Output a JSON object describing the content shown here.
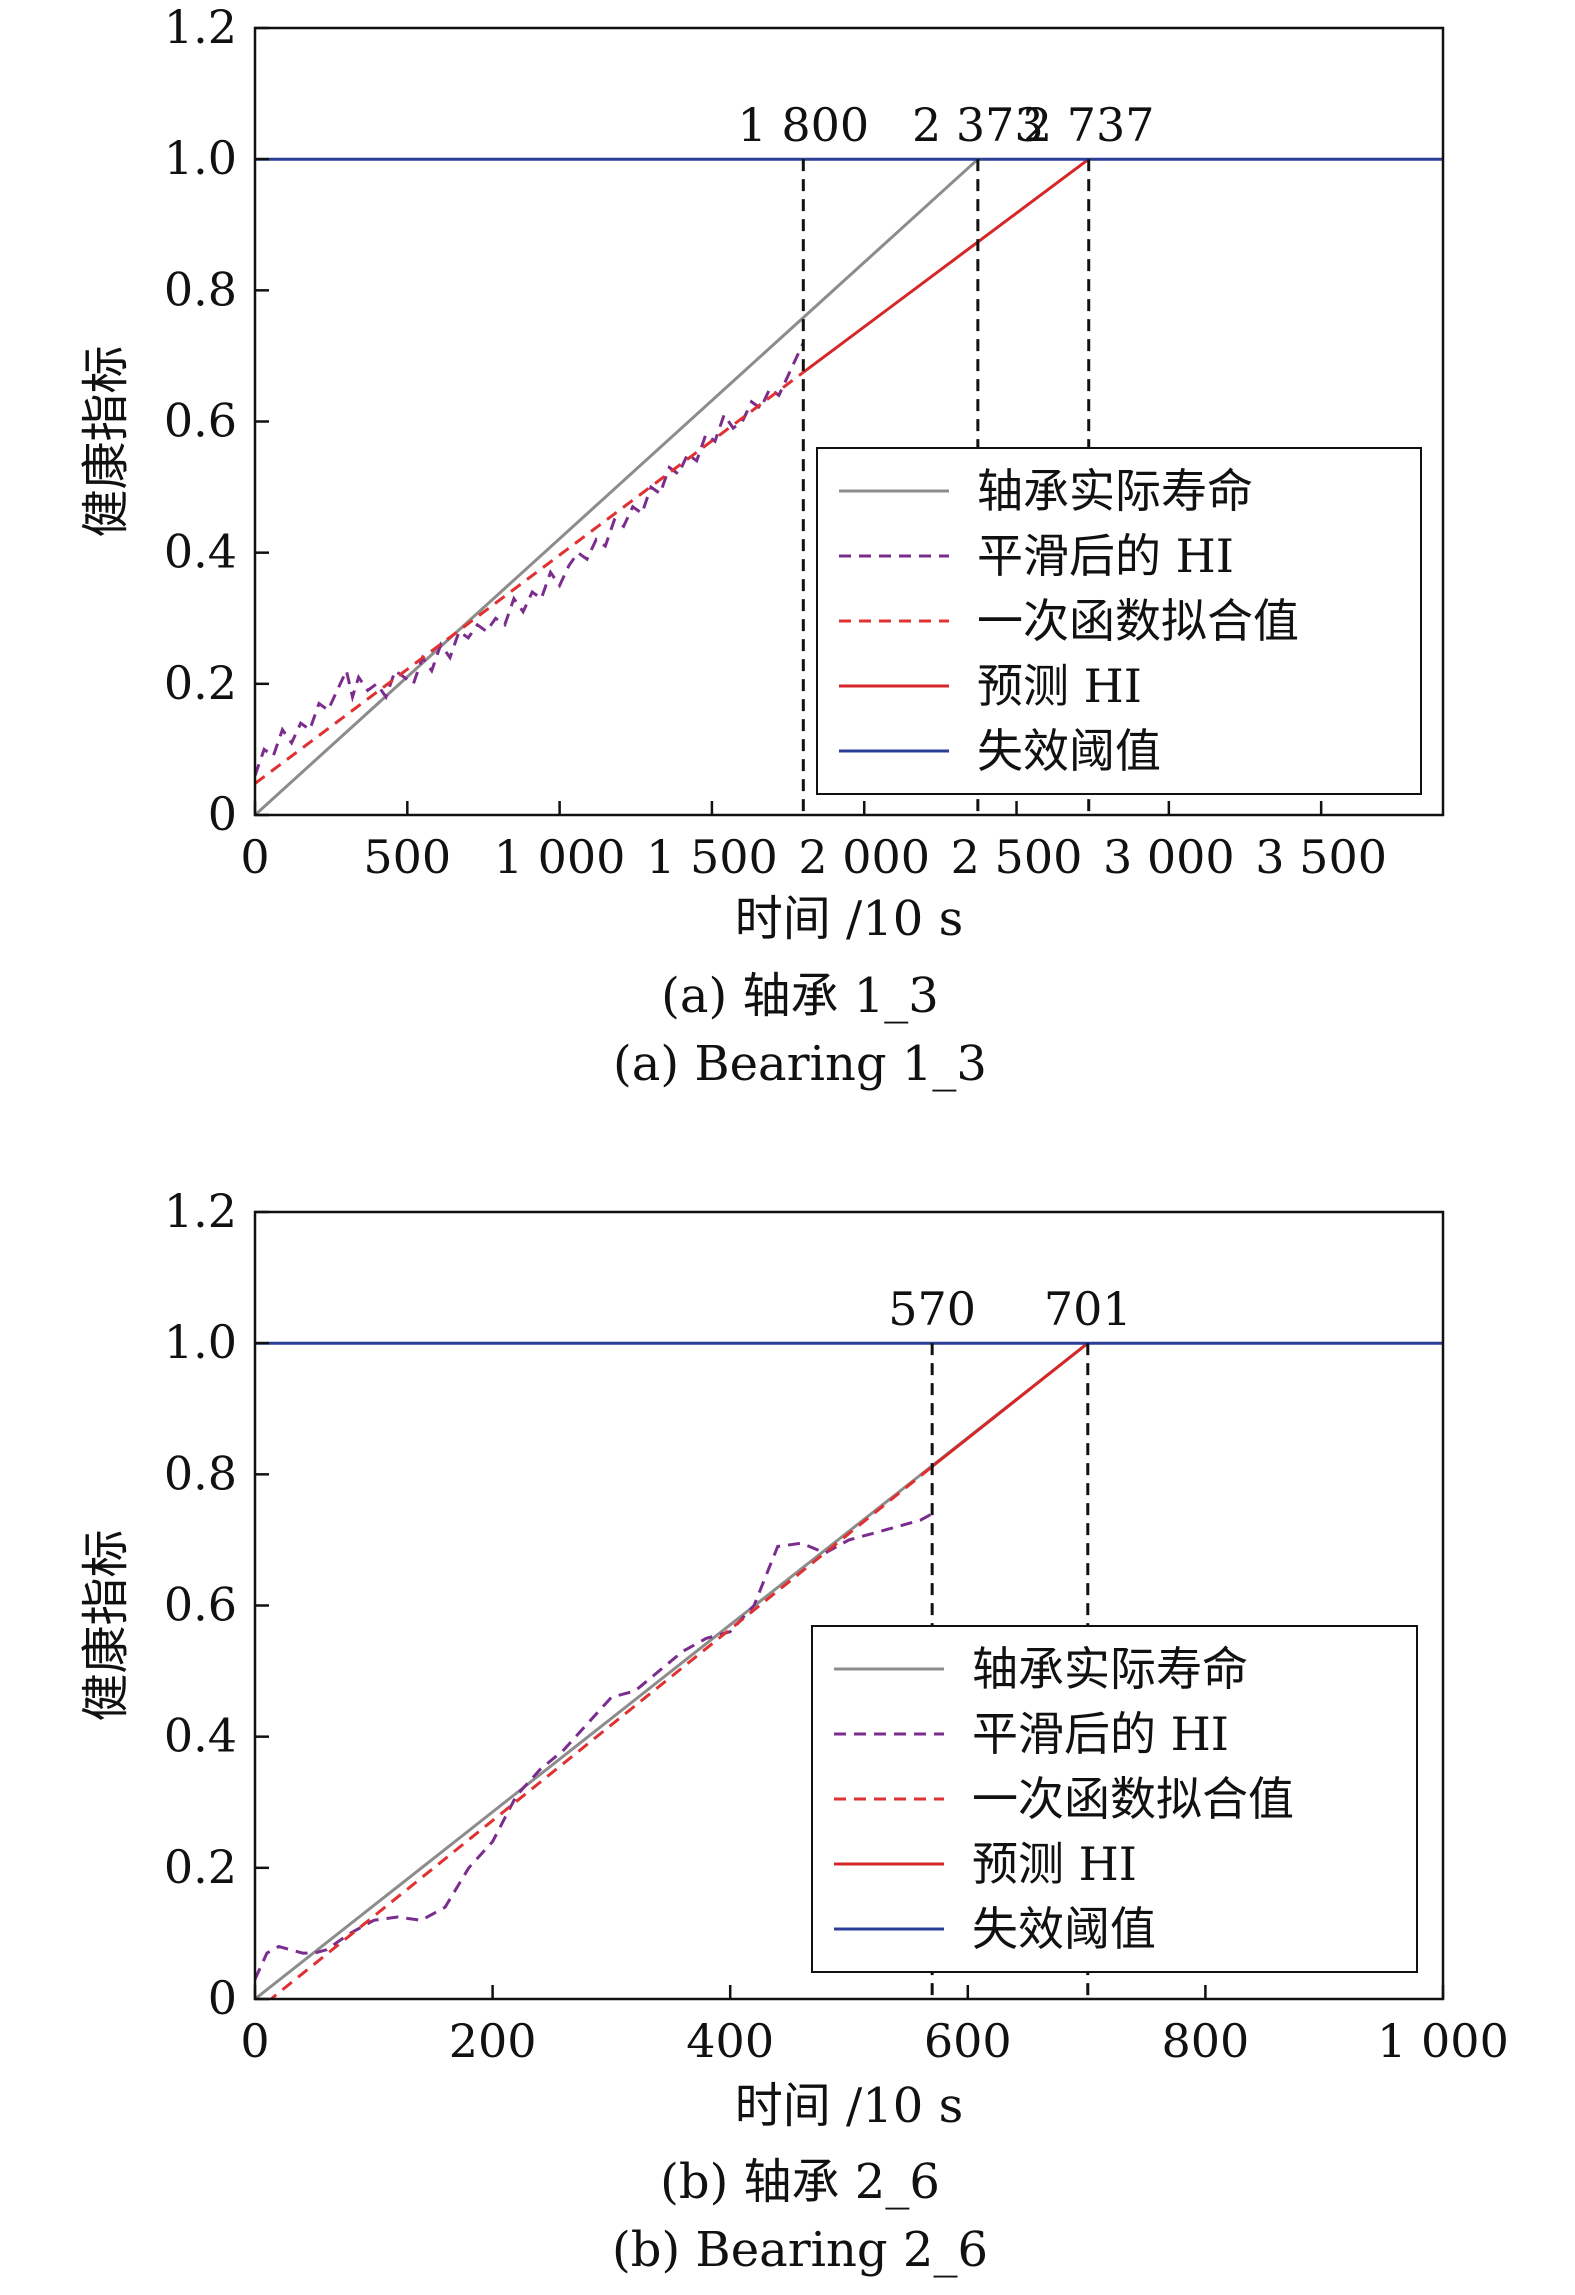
{
  "chart_data": [
    {
      "type": "line",
      "caption_cn": "(a) 轴承 1_3",
      "caption_en": "(a) Bearing 1_3",
      "xlabel": "时间 /10 s",
      "ylabel": "健康指标",
      "xlim": [
        0,
        3900
      ],
      "ylim": [
        0,
        1.2
      ],
      "xticks": [
        0,
        500,
        1000,
        1500,
        2000,
        2500,
        3000,
        3500
      ],
      "xtick_labels": [
        "0",
        "500",
        "1 000",
        "1 500",
        "2 000",
        "2 500",
        "3 000",
        "3 500"
      ],
      "yticks": [
        0,
        0.2,
        0.4,
        0.6,
        0.8,
        1.0,
        1.2
      ],
      "ytick_labels": [
        "0",
        "0.2",
        "0.4",
        "0.6",
        "0.8",
        "1.0",
        "1.2"
      ],
      "legend_position": "lower-right",
      "vlines": [
        {
          "x": 1800,
          "label": "1 800"
        },
        {
          "x": 2373,
          "label": "2 373"
        },
        {
          "x": 2737,
          "label": "2 737"
        }
      ],
      "series": [
        {
          "name": "轴承实际寿命",
          "style": "solid",
          "color": "#8c8c8c",
          "x": [
            0,
            2373
          ],
          "y": [
            0,
            1.0
          ]
        },
        {
          "name": "平滑后的 HI",
          "style": "dashed",
          "color": "#7b2d8e",
          "x": [
            0,
            30,
            60,
            90,
            120,
            150,
            180,
            210,
            240,
            270,
            300,
            320,
            340,
            370,
            400,
            430,
            460,
            490,
            520,
            550,
            580,
            610,
            640,
            670,
            700,
            730,
            760,
            790,
            820,
            850,
            880,
            910,
            940,
            970,
            1000,
            1030,
            1060,
            1090,
            1120,
            1150,
            1180,
            1210,
            1240,
            1270,
            1300,
            1330,
            1360,
            1390,
            1420,
            1450,
            1480,
            1510,
            1540,
            1570,
            1600,
            1630,
            1660,
            1690,
            1720,
            1750,
            1780,
            1800
          ],
          "y": [
            0.06,
            0.1,
            0.09,
            0.13,
            0.11,
            0.14,
            0.13,
            0.17,
            0.16,
            0.19,
            0.22,
            0.18,
            0.21,
            0.19,
            0.2,
            0.18,
            0.22,
            0.21,
            0.2,
            0.24,
            0.22,
            0.26,
            0.24,
            0.28,
            0.27,
            0.29,
            0.28,
            0.3,
            0.29,
            0.33,
            0.31,
            0.34,
            0.33,
            0.37,
            0.35,
            0.38,
            0.4,
            0.39,
            0.42,
            0.41,
            0.45,
            0.44,
            0.47,
            0.46,
            0.5,
            0.49,
            0.53,
            0.52,
            0.55,
            0.54,
            0.58,
            0.57,
            0.61,
            0.59,
            0.6,
            0.63,
            0.62,
            0.65,
            0.64,
            0.67,
            0.7,
            0.72
          ]
        },
        {
          "name": "一次函数拟合值",
          "style": "dashed",
          "color": "#e03030",
          "x": [
            0,
            1800
          ],
          "y": [
            0.048,
            0.675
          ]
        },
        {
          "name": "预测 HI",
          "style": "solid",
          "color": "#d62728",
          "x": [
            1800,
            2737
          ],
          "y": [
            0.675,
            1.0
          ]
        },
        {
          "name": "失效阈值",
          "style": "solid",
          "color": "#2b3f99",
          "x": [
            0,
            3900
          ],
          "y": [
            1.0,
            1.0
          ]
        }
      ]
    },
    {
      "type": "line",
      "caption_cn": "(b) 轴承 2_6",
      "caption_en": "(b) Bearing 2_6",
      "xlabel": "时间 /10 s",
      "ylabel": "健康指标",
      "xlim": [
        0,
        1000
      ],
      "ylim": [
        0,
        1.2
      ],
      "xticks": [
        0,
        200,
        400,
        600,
        800,
        1000
      ],
      "xtick_labels": [
        "0",
        "200",
        "400",
        "600",
        "800",
        "1 000"
      ],
      "yticks": [
        0,
        0.2,
        0.4,
        0.6,
        0.8,
        1.0,
        1.2
      ],
      "ytick_labels": [
        "0",
        "0.2",
        "0.4",
        "0.6",
        "0.8",
        "1.0",
        "1.2"
      ],
      "legend_position": "lower-right",
      "vlines": [
        {
          "x": 570,
          "label": "570"
        },
        {
          "x": 701,
          "label": "701"
        }
      ],
      "series": [
        {
          "name": "轴承实际寿命",
          "style": "solid",
          "color": "#8c8c8c",
          "x": [
            0,
            701
          ],
          "y": [
            0,
            1.0
          ]
        },
        {
          "name": "平滑后的 HI",
          "style": "dashed",
          "color": "#7b2d8e",
          "x": [
            0,
            10,
            20,
            30,
            40,
            50,
            60,
            80,
            100,
            120,
            140,
            160,
            180,
            200,
            220,
            240,
            260,
            280,
            300,
            320,
            340,
            360,
            380,
            400,
            420,
            440,
            460,
            480,
            500,
            520,
            540,
            560,
            570
          ],
          "y": [
            0.03,
            0.07,
            0.08,
            0.075,
            0.07,
            0.07,
            0.075,
            0.1,
            0.12,
            0.125,
            0.12,
            0.14,
            0.2,
            0.24,
            0.31,
            0.35,
            0.38,
            0.42,
            0.46,
            0.47,
            0.5,
            0.53,
            0.55,
            0.56,
            0.6,
            0.69,
            0.695,
            0.68,
            0.7,
            0.71,
            0.72,
            0.73,
            0.74
          ]
        },
        {
          "name": "一次函数拟合值",
          "style": "dashed",
          "color": "#e03030",
          "x": [
            10,
            570
          ],
          "y": [
            -0.005,
            0.812
          ]
        },
        {
          "name": "预测 HI",
          "style": "solid",
          "color": "#d62728",
          "x": [
            570,
            701
          ],
          "y": [
            0.812,
            1.0
          ]
        },
        {
          "name": "失效阈值",
          "style": "solid",
          "color": "#2b3f99",
          "x": [
            0,
            1000
          ],
          "y": [
            1.0,
            1.0
          ]
        }
      ]
    }
  ]
}
